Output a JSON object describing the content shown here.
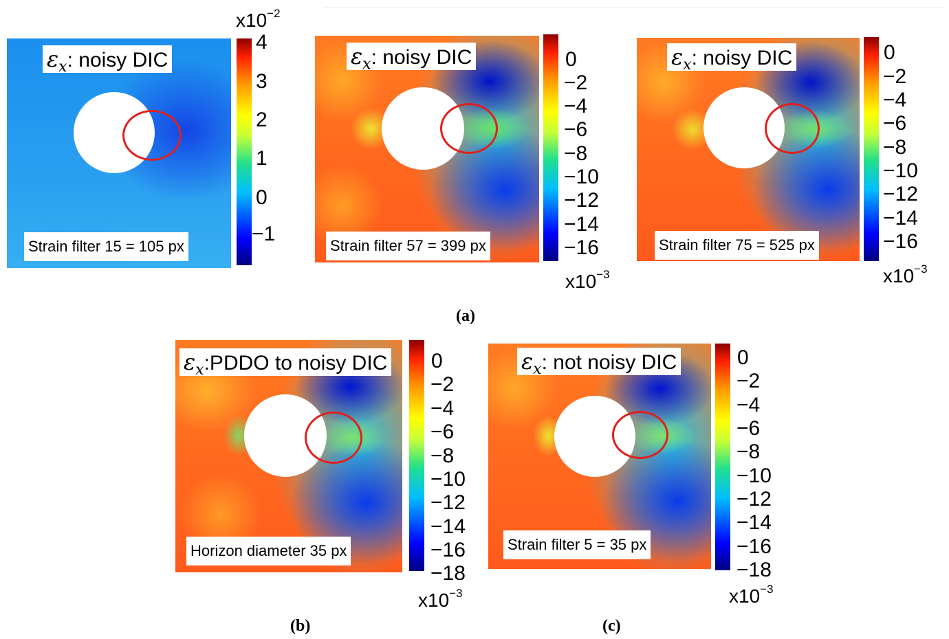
{
  "panels": [
    {
      "title_prefix": "ε",
      "title_sub": "x",
      "title_text": ": noisy DIC",
      "filter": "Strain filter 15 = 105 px"
    },
    {
      "title_prefix": "ε",
      "title_sub": "x",
      "title_text": ": noisy DIC",
      "filter": "Strain filter 57 = 399 px"
    },
    {
      "title_prefix": "ε",
      "title_sub": "x",
      "title_text": ": noisy DIC",
      "filter": "Strain filter 75 = 525 px"
    },
    {
      "title_prefix": "ε",
      "title_sub": "x",
      "title_text": ":PDDO to noisy DIC",
      "filter": "Horizon diameter 35 px"
    },
    {
      "title_prefix": "ε",
      "title_sub": "x",
      "title_text": ": not noisy DIC",
      "filter": "Strain filter 5 = 35 px"
    }
  ],
  "colorbars": [
    {
      "exp_base": "x10",
      "exp_pow": "−2",
      "ticks": [
        "4",
        "3",
        "2",
        "1",
        "0",
        "−1"
      ]
    },
    {
      "exp_base": "x10",
      "exp_pow": "−3",
      "ticks": [
        "0",
        "−2",
        "−4",
        "−6",
        "−8",
        "−10",
        "−12",
        "−14",
        "−16"
      ]
    },
    {
      "exp_base": "x10",
      "exp_pow": "−3",
      "ticks": [
        "0",
        "−2",
        "−4",
        "−6",
        "−8",
        "−10",
        "−12",
        "−14",
        "−16"
      ]
    },
    {
      "exp_base": "x10",
      "exp_pow": "−3",
      "ticks": [
        "0",
        "−2",
        "−4",
        "−6",
        "−8",
        "−10",
        "−12",
        "−14",
        "−16",
        "−18"
      ]
    },
    {
      "exp_base": "x10",
      "exp_pow": "−3",
      "ticks": [
        "0",
        "−2",
        "−4",
        "−6",
        "−8",
        "−10",
        "−12",
        "−14",
        "−16",
        "−18"
      ]
    }
  ],
  "subfigure_labels": {
    "a": "(a)",
    "b": "(b)",
    "c": "(c)"
  },
  "chart_data": [
    {
      "type": "heatmap",
      "title": "εx: noisy DIC",
      "annotation": "Strain filter 15 = 105 px",
      "colorbar_range": [
        -1.5,
        4.3
      ],
      "colorbar_scale": "x10^-2"
    },
    {
      "type": "heatmap",
      "title": "εx: noisy DIC",
      "annotation": "Strain filter 57 = 399 px",
      "colorbar_range": [
        -17.5,
        1.5
      ],
      "colorbar_scale": "x10^-3"
    },
    {
      "type": "heatmap",
      "title": "εx: noisy DIC",
      "annotation": "Strain filter 75 = 525 px",
      "colorbar_range": [
        -17.5,
        0.5
      ],
      "colorbar_scale": "x10^-3"
    },
    {
      "type": "heatmap",
      "title": "εx:PDDO to noisy DIC",
      "annotation": "Horizon diameter 35 px",
      "colorbar_range": [
        -18,
        1.5
      ],
      "colorbar_scale": "x10^-3"
    },
    {
      "type": "heatmap",
      "title": "εx: not noisy DIC",
      "annotation": "Strain filter 5 = 35 px",
      "colorbar_range": [
        -18.5,
        1.5
      ],
      "colorbar_scale": "x10^-3"
    }
  ]
}
